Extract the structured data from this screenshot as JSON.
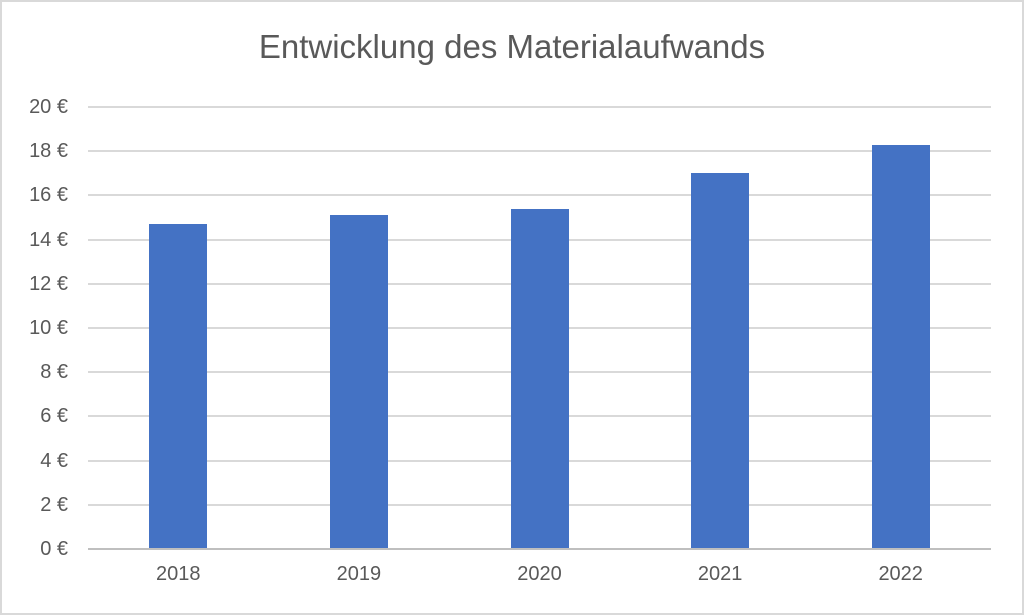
{
  "chart_data": {
    "type": "bar",
    "title": "Entwicklung des Materialaufwands",
    "categories": [
      "2018",
      "2019",
      "2020",
      "2021",
      "2022"
    ],
    "values": [
      14.7,
      15.1,
      15.4,
      17.0,
      18.3
    ],
    "xlabel": "",
    "ylabel": "",
    "ylim": [
      0,
      20
    ],
    "ytick_step": 2,
    "yticks": [
      {
        "value": 0,
        "label": "0 €"
      },
      {
        "value": 2,
        "label": "2 €"
      },
      {
        "value": 4,
        "label": "4 €"
      },
      {
        "value": 6,
        "label": "6 €"
      },
      {
        "value": 8,
        "label": "8 €"
      },
      {
        "value": 10,
        "label": "10 €"
      },
      {
        "value": 12,
        "label": "12 €"
      },
      {
        "value": 14,
        "label": "14 €"
      },
      {
        "value": 16,
        "label": "16 €"
      },
      {
        "value": 18,
        "label": "18 €"
      },
      {
        "value": 20,
        "label": "20 €"
      }
    ],
    "grid": true,
    "legend": false,
    "colors": {
      "bar": "#4472C4",
      "text": "#595959",
      "gridline": "#D9D9D9",
      "axis_line": "#BFBFBF",
      "background": "#FFFFFF",
      "border": "#D9D9D9"
    }
  }
}
